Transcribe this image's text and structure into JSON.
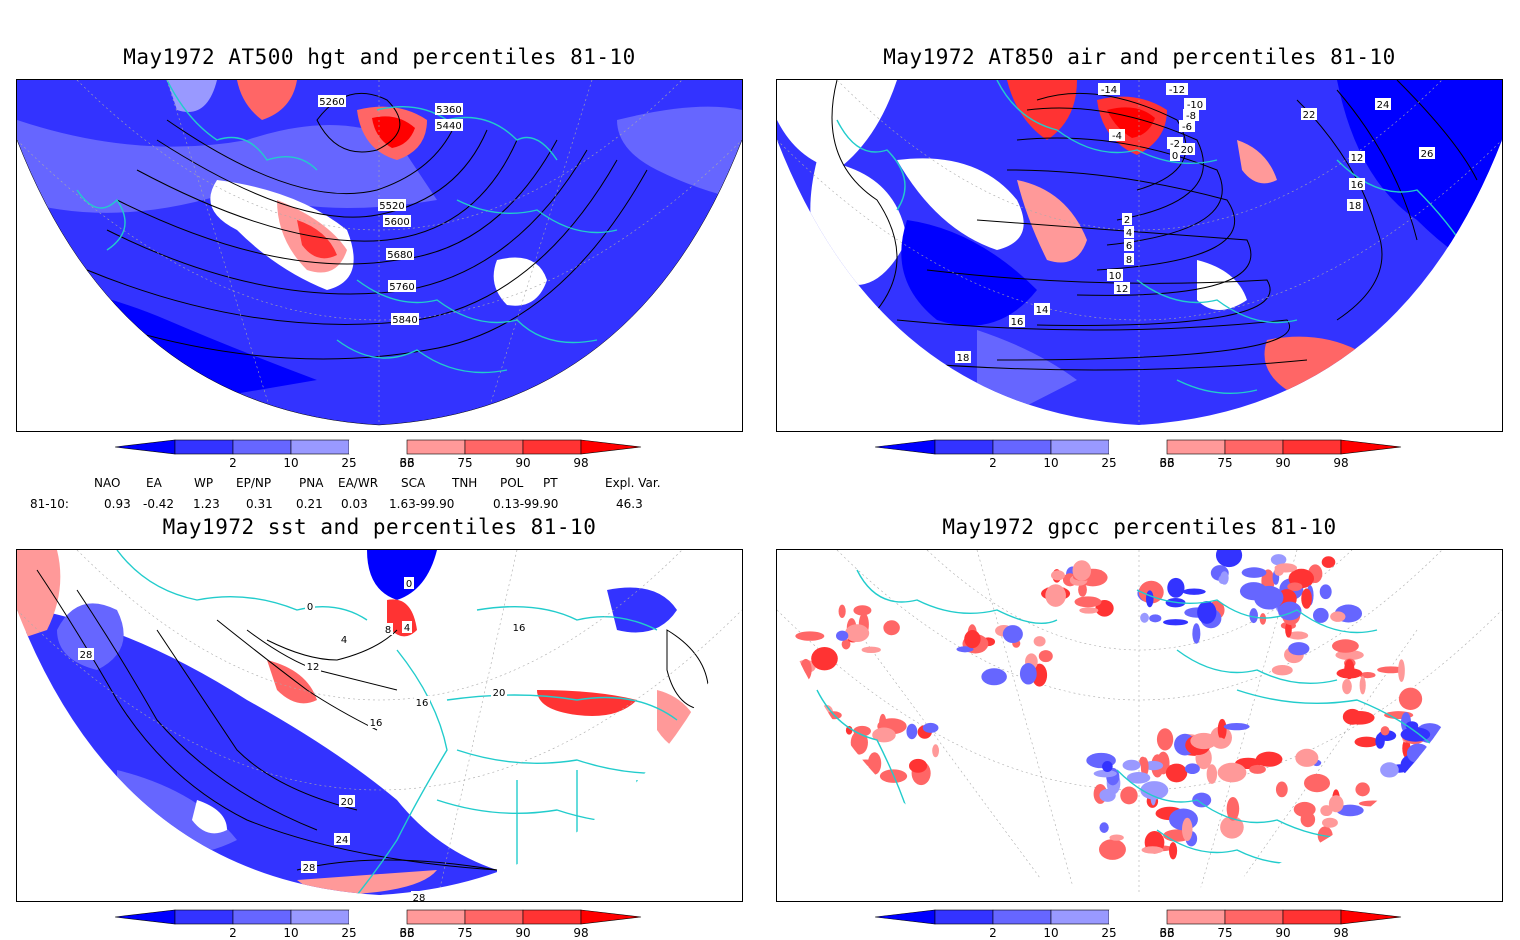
{
  "colors": {
    "blue_dark": "#0000ff",
    "blue_mid": "#3333ff",
    "blue_light": "#6666ff",
    "blue_pale": "#9999ff",
    "red_pale": "#ff9999",
    "red_light": "#ff6666",
    "red_mid": "#ff3333",
    "red_dark": "#ff0000",
    "coast": "#22cccc",
    "contour": "#000000"
  },
  "colorbar_labels": [
    "2",
    "10",
    "25",
    "33",
    "66",
    "75",
    "90",
    "98"
  ],
  "panels": [
    {
      "id": "at500",
      "title": "May1972 AT500 hgt and percentiles 81-10",
      "contour_labels": [
        "5260",
        "5360",
        "5440",
        "5520",
        "5600",
        "5680",
        "5760",
        "5840"
      ]
    },
    {
      "id": "at850",
      "title": "May1972 AT850 air and percentiles 81-10",
      "contour_labels": [
        "-14",
        "-12",
        "-10",
        "-8",
        "-6",
        "-4",
        "-2",
        "0",
        "2",
        "4",
        "6",
        "8",
        "10",
        "12",
        "14",
        "16",
        "18",
        "20",
        "22",
        "24",
        "26",
        "12",
        "16",
        "18"
      ]
    },
    {
      "id": "sst",
      "title": "May1972 sst and percentiles 81-10",
      "contour_labels": [
        "0",
        "0",
        "4",
        "4",
        "8",
        "12",
        "16",
        "16",
        "20",
        "20",
        "24",
        "28",
        "28",
        "28",
        "16"
      ]
    },
    {
      "id": "gpcc",
      "title": "May1972 gpcc percentiles 81-10",
      "contour_labels": []
    }
  ],
  "indices": {
    "headers": [
      "NAO",
      "EA",
      "WP",
      "EP/NP",
      "PNA",
      "EA/WR",
      "SCA",
      "TNH",
      "POL",
      "PT",
      "Expl. Var."
    ],
    "row_label": "81-10:",
    "values": [
      "0.93",
      "-0.42",
      "1.23",
      "0.31",
      "0.21",
      "0.03",
      "1.63-99.90",
      "",
      "0.13-99.90",
      "",
      "46.3"
    ]
  }
}
